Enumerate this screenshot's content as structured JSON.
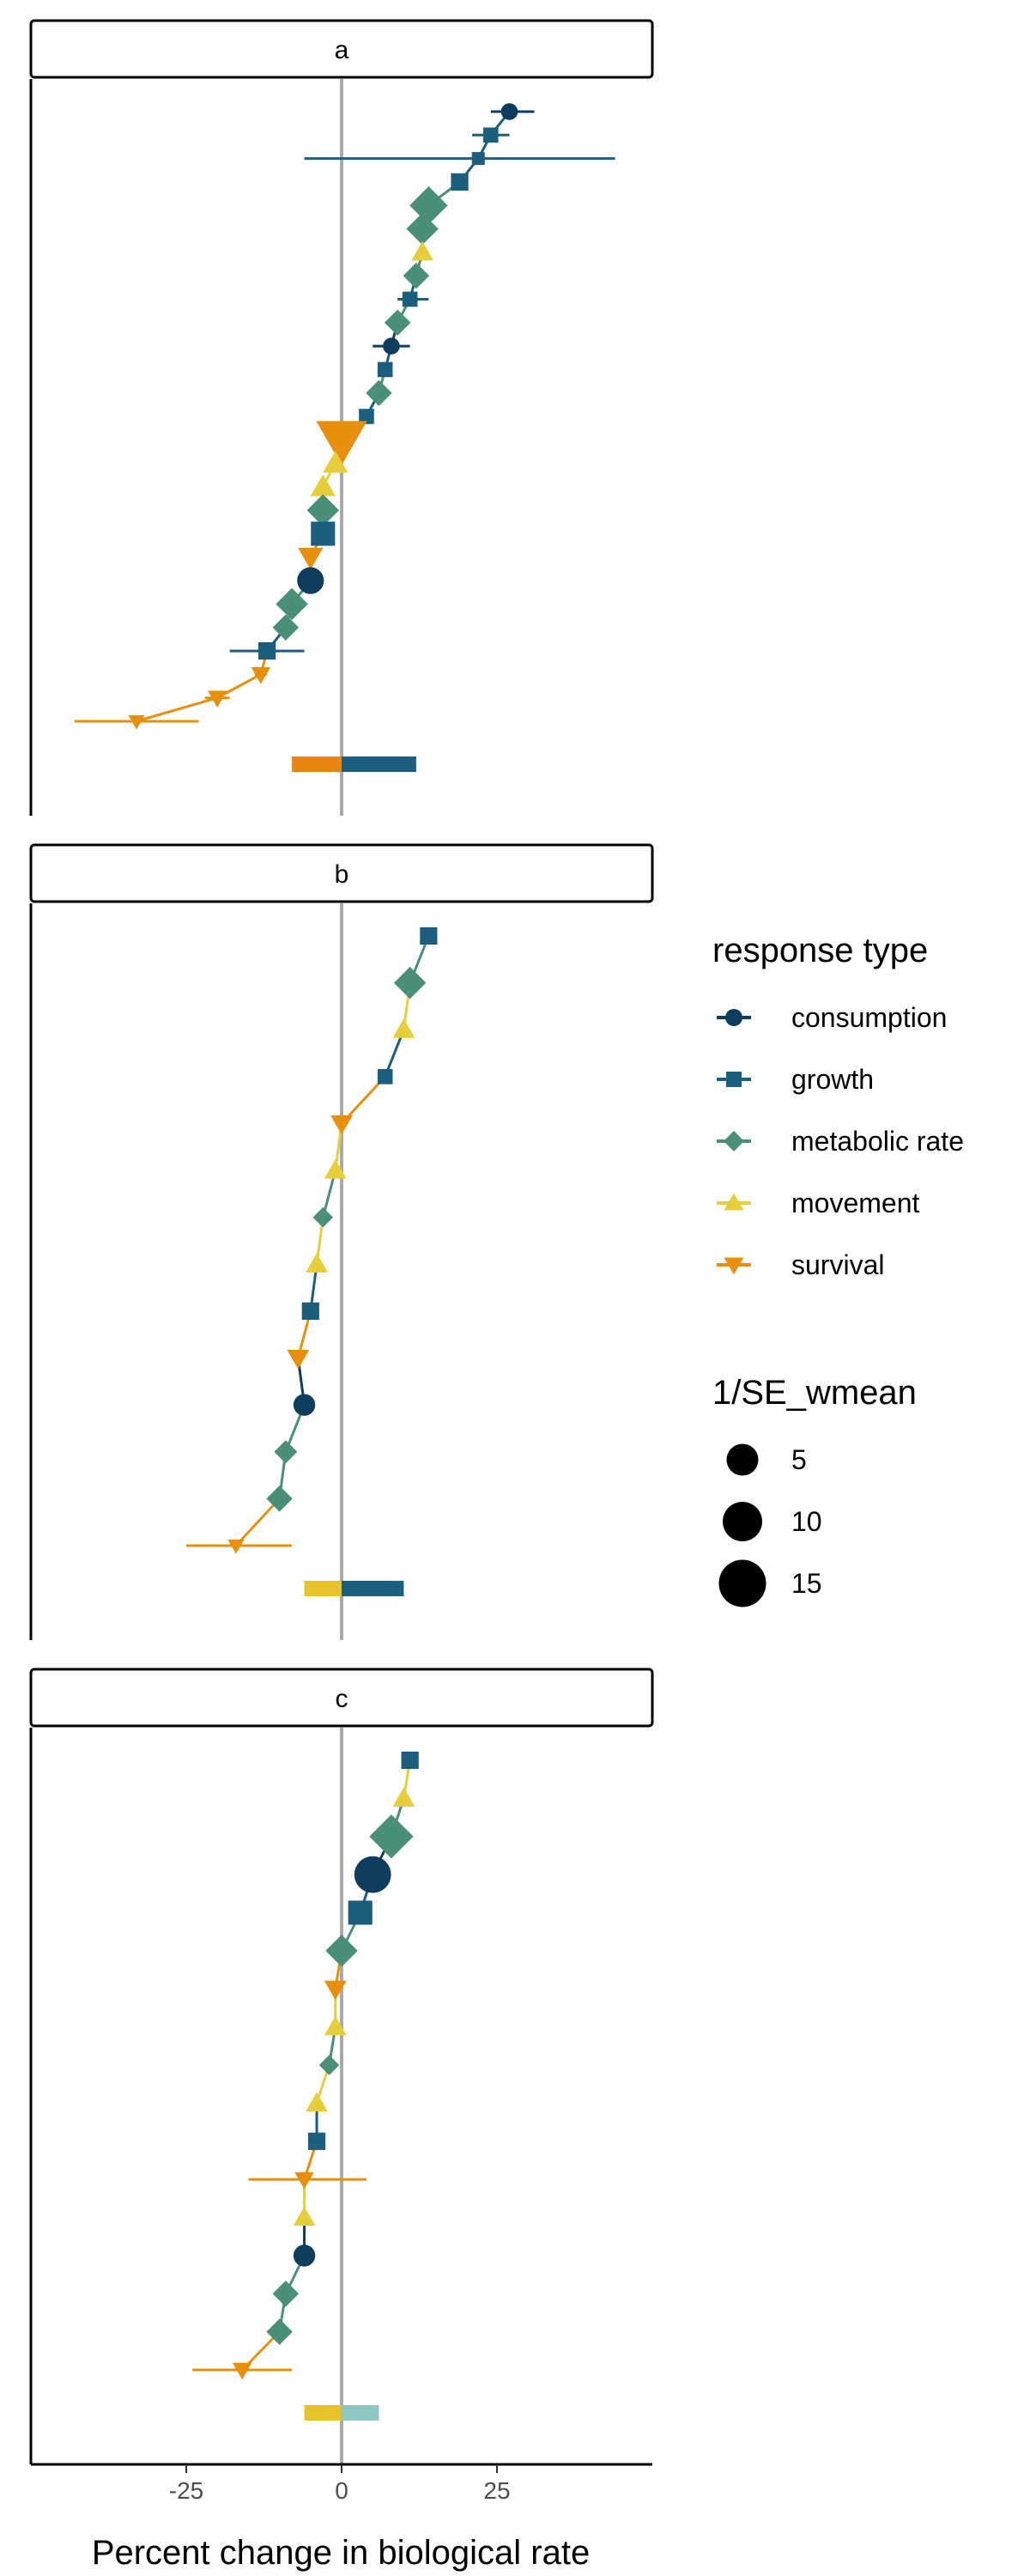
{
  "chart_data": {
    "type": "scatter",
    "xlabel": "Percent change in biological rate",
    "ylabel": "",
    "xticks": [
      -25,
      0,
      25
    ],
    "xtick_labels": [
      "-25",
      "0",
      "25"
    ],
    "xlim": [
      -50,
      50
    ],
    "vline_x": 0,
    "facets": [
      {
        "label": "a",
        "points": [
          {
            "t": "consumption",
            "x": 27,
            "lo": 24,
            "hi": 31,
            "size": 4
          },
          {
            "t": "growth",
            "x": 24,
            "lo": 21,
            "hi": 27,
            "size": 4
          },
          {
            "t": "growth",
            "x": 22,
            "lo": -6,
            "hi": 44,
            "size": 3
          },
          {
            "t": "growth",
            "x": 19,
            "lo": 18,
            "hi": 20,
            "size": 5
          },
          {
            "t": "metabolic rate",
            "x": 14,
            "lo": 13,
            "hi": 15,
            "size": 10
          },
          {
            "t": "metabolic rate",
            "x": 13,
            "lo": 12,
            "hi": 14,
            "size": 8
          },
          {
            "t": "movement",
            "x": 13,
            "lo": 12,
            "hi": 14,
            "size": 5
          },
          {
            "t": "metabolic rate",
            "x": 12,
            "lo": 11,
            "hi": 13,
            "size": 6
          },
          {
            "t": "growth",
            "x": 11,
            "lo": 9,
            "hi": 14,
            "size": 4
          },
          {
            "t": "metabolic rate",
            "x": 9,
            "lo": 8,
            "hi": 10,
            "size": 6
          },
          {
            "t": "consumption",
            "x": 8,
            "lo": 5,
            "hi": 11,
            "size": 4
          },
          {
            "t": "growth",
            "x": 7,
            "lo": 6,
            "hi": 8,
            "size": 4
          },
          {
            "t": "metabolic rate",
            "x": 6,
            "lo": 5,
            "hi": 7,
            "size": 6
          },
          {
            "t": "growth",
            "x": 4,
            "lo": 3,
            "hi": 5,
            "size": 4
          },
          {
            "t": "survival",
            "x": 0,
            "lo": -1,
            "hi": 1,
            "size": 15
          },
          {
            "t": "movement",
            "x": -1,
            "lo": -2,
            "hi": 0,
            "size": 6
          },
          {
            "t": "movement",
            "x": -3,
            "lo": -4,
            "hi": -2,
            "size": 6
          },
          {
            "t": "metabolic rate",
            "x": -3,
            "lo": -4,
            "hi": -2,
            "size": 8
          },
          {
            "t": "growth",
            "x": -3,
            "lo": -4,
            "hi": -2,
            "size": 8
          },
          {
            "t": "survival",
            "x": -5,
            "lo": -6,
            "hi": -4,
            "size": 6
          },
          {
            "t": "consumption",
            "x": -5,
            "lo": -6,
            "hi": -4,
            "size": 8
          },
          {
            "t": "metabolic rate",
            "x": -8,
            "lo": -9,
            "hi": -7,
            "size": 8
          },
          {
            "t": "metabolic rate",
            "x": -9,
            "lo": -10,
            "hi": -8,
            "size": 6
          },
          {
            "t": "growth",
            "x": -12,
            "lo": -18,
            "hi": -6,
            "size": 5
          },
          {
            "t": "survival",
            "x": -13,
            "lo": -14,
            "hi": -12,
            "size": 4
          },
          {
            "t": "survival",
            "x": -20,
            "lo": -22,
            "hi": -18,
            "size": 4
          },
          {
            "t": "survival",
            "x": -33,
            "lo": -43,
            "hi": -23,
            "size": 3
          }
        ],
        "bars": [
          {
            "value": -8,
            "color": "#e8850e"
          },
          {
            "value": 12,
            "color": "#1b5e7e"
          }
        ]
      },
      {
        "label": "b",
        "points": [
          {
            "t": "growth",
            "x": 14,
            "lo": 13,
            "hi": 15,
            "size": 5
          },
          {
            "t": "metabolic rate",
            "x": 11,
            "lo": 10,
            "hi": 12,
            "size": 8
          },
          {
            "t": "movement",
            "x": 10,
            "lo": 9,
            "hi": 11,
            "size": 5
          },
          {
            "t": "growth",
            "x": 7,
            "lo": 6,
            "hi": 8,
            "size": 4
          },
          {
            "t": "survival",
            "x": 0,
            "lo": -1,
            "hi": 1,
            "size": 5
          },
          {
            "t": "movement",
            "x": -1,
            "lo": -2,
            "hi": 0,
            "size": 5
          },
          {
            "t": "metabolic rate",
            "x": -3,
            "lo": -4,
            "hi": -2,
            "size": 4
          },
          {
            "t": "movement",
            "x": -4,
            "lo": -5,
            "hi": -3,
            "size": 5
          },
          {
            "t": "growth",
            "x": -5,
            "lo": -6,
            "hi": -4,
            "size": 5
          },
          {
            "t": "survival",
            "x": -7,
            "lo": -8,
            "hi": -6,
            "size": 5
          },
          {
            "t": "consumption",
            "x": -6,
            "lo": -7,
            "hi": -5,
            "size": 6
          },
          {
            "t": "metabolic rate",
            "x": -9,
            "lo": -10,
            "hi": -8,
            "size": 5
          },
          {
            "t": "metabolic rate",
            "x": -10,
            "lo": -11,
            "hi": -9,
            "size": 6
          },
          {
            "t": "survival",
            "x": -17,
            "lo": -25,
            "hi": -8,
            "size": 3
          }
        ],
        "bars": [
          {
            "value": -6,
            "color": "#e6c22b"
          },
          {
            "value": 10,
            "color": "#1b5e7e"
          }
        ]
      },
      {
        "label": "c",
        "points": [
          {
            "t": "growth",
            "x": 11,
            "lo": 10,
            "hi": 12,
            "size": 5
          },
          {
            "t": "movement",
            "x": 10,
            "lo": 9,
            "hi": 11,
            "size": 5
          },
          {
            "t": "metabolic rate",
            "x": 8,
            "lo": 7,
            "hi": 9,
            "size": 12
          },
          {
            "t": "consumption",
            "x": 5,
            "lo": 4,
            "hi": 6,
            "size": 12
          },
          {
            "t": "growth",
            "x": 3,
            "lo": 2,
            "hi": 4,
            "size": 8
          },
          {
            "t": "metabolic rate",
            "x": 0,
            "lo": -1,
            "hi": 1,
            "size": 8
          },
          {
            "t": "survival",
            "x": -1,
            "lo": -2,
            "hi": 0,
            "size": 5
          },
          {
            "t": "movement",
            "x": -1,
            "lo": -2,
            "hi": 0,
            "size": 5
          },
          {
            "t": "metabolic rate",
            "x": -2,
            "lo": -3,
            "hi": -1,
            "size": 4
          },
          {
            "t": "movement",
            "x": -4,
            "lo": -5,
            "hi": -3,
            "size": 5
          },
          {
            "t": "growth",
            "x": -4,
            "lo": -5,
            "hi": -3,
            "size": 5
          },
          {
            "t": "survival",
            "x": -6,
            "lo": -15,
            "hi": 4,
            "size": 4
          },
          {
            "t": "movement",
            "x": -6,
            "lo": -7,
            "hi": -5,
            "size": 5
          },
          {
            "t": "consumption",
            "x": -6,
            "lo": -7,
            "hi": -5,
            "size": 6
          },
          {
            "t": "metabolic rate",
            "x": -9,
            "lo": -10,
            "hi": -8,
            "size": 6
          },
          {
            "t": "metabolic rate",
            "x": -10,
            "lo": -11,
            "hi": -9,
            "size": 6
          },
          {
            "t": "survival",
            "x": -16,
            "lo": -24,
            "hi": -8,
            "size": 4
          }
        ],
        "bars": [
          {
            "value": -6,
            "color": "#e6c22b"
          },
          {
            "value": 6,
            "color": "#8fc7c4"
          }
        ]
      }
    ],
    "legend": {
      "color_title": "response type",
      "color_entries": [
        {
          "name": "consumption",
          "color": "#0f3d5e",
          "shape": "circle"
        },
        {
          "name": "growth",
          "color": "#1b5e7e",
          "shape": "square"
        },
        {
          "name": "metabolic rate",
          "color": "#4a8f78",
          "shape": "diamond"
        },
        {
          "name": "movement",
          "color": "#e6cf3a",
          "shape": "triangle-up"
        },
        {
          "name": "survival",
          "color": "#e8900e",
          "shape": "triangle-down"
        }
      ],
      "size_title": "1/SE_wmean",
      "size_entries": [
        {
          "label": "5",
          "value": 5
        },
        {
          "label": "10",
          "value": 10
        },
        {
          "label": "15",
          "value": 15
        }
      ]
    },
    "grid": false,
    "legend_position": "right"
  }
}
